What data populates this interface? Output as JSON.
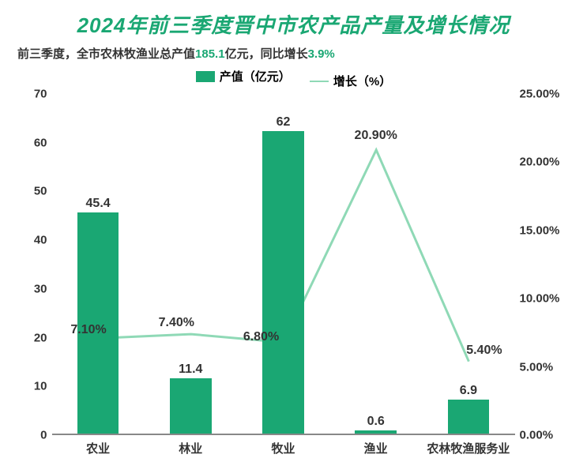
{
  "title": "2024年前三季度晋中市农产品产量及增长情况",
  "subtitle_prefix": "前三季度，全市农林牧渔业总产值",
  "subtitle_value": "185.1",
  "subtitle_unit": "亿元，同比增长",
  "subtitle_growth": "3.9%",
  "legend": {
    "bar": "产值（亿元）",
    "line": "增长（%）"
  },
  "chart": {
    "type": "bar+line",
    "categories": [
      "农业",
      "林业",
      "牧业",
      "渔业",
      "农林牧渔服务业"
    ],
    "bar_values": [
      45.4,
      11.4,
      62,
      0.6,
      6.9
    ],
    "bar_labels": [
      "45.4",
      "11.4",
      "62",
      "0.6",
      "6.9"
    ],
    "growth_values": [
      7.1,
      7.4,
      6.8,
      20.9,
      5.4
    ],
    "growth_labels": [
      "7.10%",
      "7.40%",
      "6.80%",
      "20.90%",
      "5.40%"
    ],
    "bar_color": "#1aa773",
    "line_color": "#8fd9b6",
    "line_width": 3,
    "title_color": "#1aa773",
    "title_fontsize": 26,
    "subtitle_fontsize": 15,
    "subtitle_color": "#333333",
    "highlight_color": "#1aa773",
    "legend_fontsize": 15,
    "axis_font_color": "#333333",
    "axis_fontsize": 15,
    "xlabel_fontsize": 15,
    "datalabel_fontsize": 16,
    "background_color": "#ffffff",
    "y_left": {
      "min": 0,
      "max": 70,
      "step": 10,
      "ticks": [
        "0",
        "10",
        "20",
        "30",
        "40",
        "50",
        "60",
        "70"
      ]
    },
    "y_right": {
      "min": 0,
      "max": 25,
      "step": 5,
      "ticks": [
        "0.00%",
        "5.00%",
        "10.00%",
        "15.00%",
        "20.00%",
        "25.00%"
      ]
    },
    "bar_width_ratio": 0.45
  }
}
